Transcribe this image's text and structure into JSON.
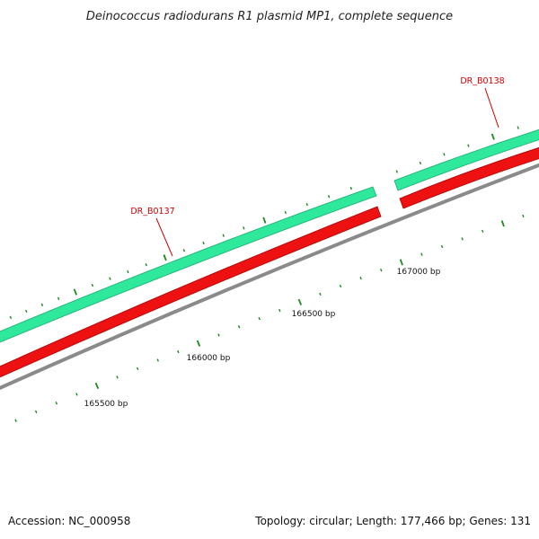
{
  "title": "Deinococcus radiodurans R1 plasmid MP1, complete sequence",
  "colors": {
    "background": "#ffffff",
    "forward_feature": "#2ee89c",
    "reverse_feature": "#ee1111",
    "backbone": "#8a8a8a",
    "gene_label": "#cc0000",
    "ticks": "#1a8a1a"
  },
  "gene_labels": [
    {
      "name": "DR_B0137"
    },
    {
      "name": "DR_B0138"
    }
  ],
  "position_labels": [
    "165500 bp",
    "166000 bp",
    "166500 bp",
    "167000 bp"
  ],
  "footer": {
    "accession": "Accession: NC_000958",
    "summary": "Topology: circular; Length: 177,466 bp; Genes: 131"
  }
}
